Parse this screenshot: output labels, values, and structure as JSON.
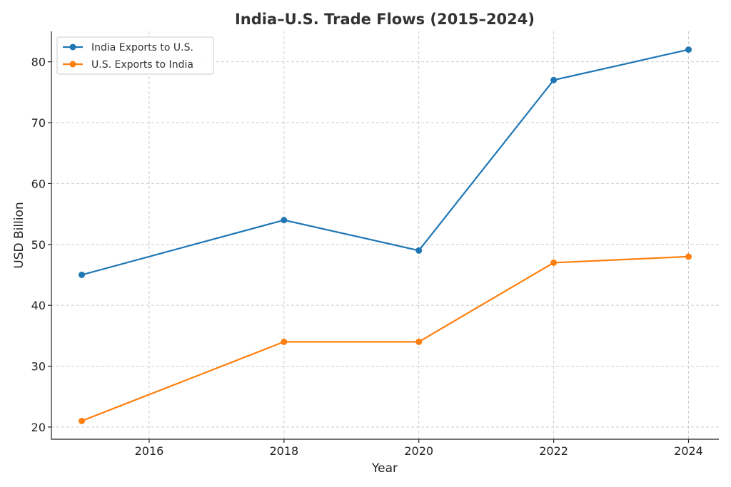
{
  "chart_data": {
    "type": "line",
    "title": "India–U.S. Trade Flows (2015–2024)",
    "xlabel": "Year",
    "ylabel": "USD Billion",
    "x": [
      2015,
      2018,
      2020,
      2022,
      2024
    ],
    "xlim": [
      2014.55,
      2024.45
    ],
    "ylim": [
      18,
      85
    ],
    "xticks": [
      2016,
      2018,
      2020,
      2022,
      2024
    ],
    "yticks": [
      20,
      30,
      40,
      50,
      60,
      70,
      80
    ],
    "grid": true,
    "legend_position": "top-left",
    "series": [
      {
        "name": "India Exports to U.S.",
        "color": "#1f77b4",
        "values": [
          45,
          54,
          49,
          77,
          82
        ]
      },
      {
        "name": "U.S. Exports to India",
        "color": "#ff7f0e",
        "values": [
          21,
          34,
          34,
          47,
          48
        ]
      }
    ]
  }
}
